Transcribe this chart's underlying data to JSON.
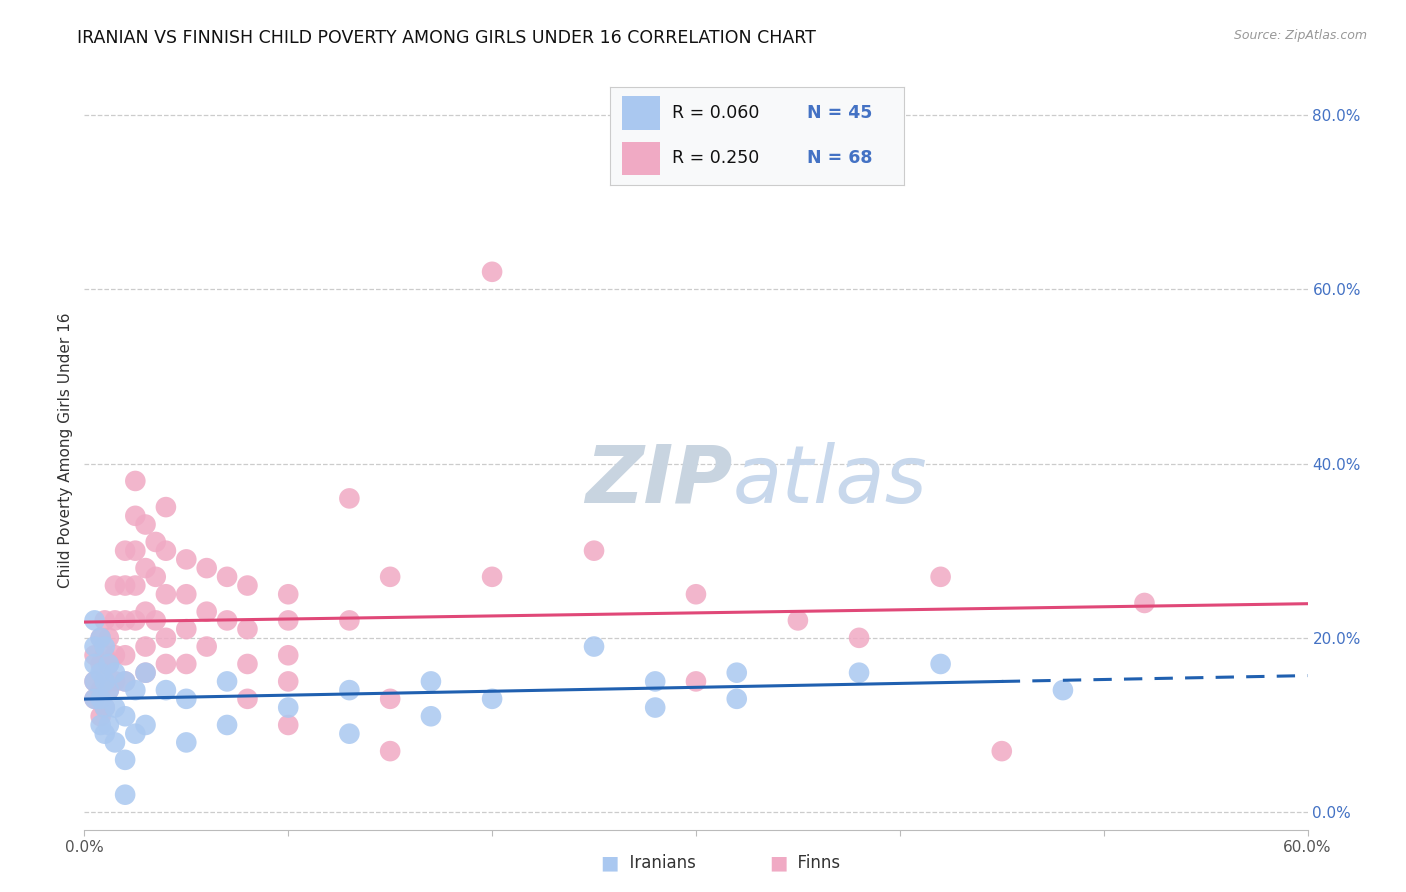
{
  "title": "IRANIAN VS FINNISH CHILD POVERTY AMONG GIRLS UNDER 16 CORRELATION CHART",
  "source": "Source: ZipAtlas.com",
  "ylabel": "Child Poverty Among Girls Under 16",
  "xlim": [
    0.0,
    0.6
  ],
  "ylim": [
    -0.02,
    0.85
  ],
  "yticks": [
    0.0,
    0.2,
    0.4,
    0.6,
    0.8
  ],
  "xticks": [
    0.0,
    0.1,
    0.2,
    0.3,
    0.4,
    0.5,
    0.6
  ],
  "iranian_color": "#aac8f0",
  "finn_color": "#f0aac4",
  "trendline_iranian_color": "#2060b0",
  "trendline_finn_color": "#e04878",
  "background_color": "#ffffff",
  "grid_color": "#cccccc",
  "iranians_scatter": [
    [
      0.005,
      0.22
    ],
    [
      0.005,
      0.19
    ],
    [
      0.005,
      0.17
    ],
    [
      0.005,
      0.15
    ],
    [
      0.005,
      0.13
    ],
    [
      0.008,
      0.2
    ],
    [
      0.008,
      0.16
    ],
    [
      0.008,
      0.13
    ],
    [
      0.008,
      0.1
    ],
    [
      0.01,
      0.19
    ],
    [
      0.01,
      0.15
    ],
    [
      0.01,
      0.12
    ],
    [
      0.01,
      0.09
    ],
    [
      0.012,
      0.17
    ],
    [
      0.012,
      0.14
    ],
    [
      0.012,
      0.1
    ],
    [
      0.015,
      0.16
    ],
    [
      0.015,
      0.12
    ],
    [
      0.015,
      0.08
    ],
    [
      0.02,
      0.15
    ],
    [
      0.02,
      0.11
    ],
    [
      0.02,
      0.06
    ],
    [
      0.02,
      0.02
    ],
    [
      0.025,
      0.14
    ],
    [
      0.025,
      0.09
    ],
    [
      0.03,
      0.16
    ],
    [
      0.03,
      0.1
    ],
    [
      0.04,
      0.14
    ],
    [
      0.05,
      0.13
    ],
    [
      0.05,
      0.08
    ],
    [
      0.07,
      0.15
    ],
    [
      0.07,
      0.1
    ],
    [
      0.1,
      0.12
    ],
    [
      0.13,
      0.14
    ],
    [
      0.13,
      0.09
    ],
    [
      0.17,
      0.15
    ],
    [
      0.17,
      0.11
    ],
    [
      0.2,
      0.13
    ],
    [
      0.25,
      0.19
    ],
    [
      0.28,
      0.15
    ],
    [
      0.28,
      0.12
    ],
    [
      0.32,
      0.16
    ],
    [
      0.32,
      0.13
    ],
    [
      0.38,
      0.16
    ],
    [
      0.42,
      0.17
    ],
    [
      0.48,
      0.14
    ]
  ],
  "finns_scatter": [
    [
      0.005,
      0.18
    ],
    [
      0.005,
      0.15
    ],
    [
      0.005,
      0.13
    ],
    [
      0.008,
      0.2
    ],
    [
      0.008,
      0.17
    ],
    [
      0.008,
      0.14
    ],
    [
      0.008,
      0.11
    ],
    [
      0.01,
      0.22
    ],
    [
      0.01,
      0.18
    ],
    [
      0.01,
      0.15
    ],
    [
      0.01,
      0.12
    ],
    [
      0.012,
      0.2
    ],
    [
      0.012,
      0.17
    ],
    [
      0.012,
      0.14
    ],
    [
      0.015,
      0.26
    ],
    [
      0.015,
      0.22
    ],
    [
      0.015,
      0.18
    ],
    [
      0.015,
      0.15
    ],
    [
      0.02,
      0.3
    ],
    [
      0.02,
      0.26
    ],
    [
      0.02,
      0.22
    ],
    [
      0.02,
      0.18
    ],
    [
      0.02,
      0.15
    ],
    [
      0.025,
      0.38
    ],
    [
      0.025,
      0.34
    ],
    [
      0.025,
      0.3
    ],
    [
      0.025,
      0.26
    ],
    [
      0.025,
      0.22
    ],
    [
      0.03,
      0.33
    ],
    [
      0.03,
      0.28
    ],
    [
      0.03,
      0.23
    ],
    [
      0.03,
      0.19
    ],
    [
      0.03,
      0.16
    ],
    [
      0.035,
      0.31
    ],
    [
      0.035,
      0.27
    ],
    [
      0.035,
      0.22
    ],
    [
      0.04,
      0.35
    ],
    [
      0.04,
      0.3
    ],
    [
      0.04,
      0.25
    ],
    [
      0.04,
      0.2
    ],
    [
      0.04,
      0.17
    ],
    [
      0.05,
      0.29
    ],
    [
      0.05,
      0.25
    ],
    [
      0.05,
      0.21
    ],
    [
      0.05,
      0.17
    ],
    [
      0.06,
      0.28
    ],
    [
      0.06,
      0.23
    ],
    [
      0.06,
      0.19
    ],
    [
      0.07,
      0.27
    ],
    [
      0.07,
      0.22
    ],
    [
      0.08,
      0.26
    ],
    [
      0.08,
      0.21
    ],
    [
      0.08,
      0.17
    ],
    [
      0.08,
      0.13
    ],
    [
      0.1,
      0.25
    ],
    [
      0.1,
      0.22
    ],
    [
      0.1,
      0.18
    ],
    [
      0.1,
      0.15
    ],
    [
      0.1,
      0.1
    ],
    [
      0.13,
      0.36
    ],
    [
      0.13,
      0.22
    ],
    [
      0.15,
      0.27
    ],
    [
      0.15,
      0.13
    ],
    [
      0.15,
      0.07
    ],
    [
      0.2,
      0.62
    ],
    [
      0.2,
      0.27
    ],
    [
      0.25,
      0.3
    ],
    [
      0.3,
      0.25
    ],
    [
      0.3,
      0.15
    ],
    [
      0.35,
      0.22
    ],
    [
      0.38,
      0.2
    ],
    [
      0.42,
      0.27
    ],
    [
      0.45,
      0.07
    ],
    [
      0.52,
      0.24
    ]
  ]
}
